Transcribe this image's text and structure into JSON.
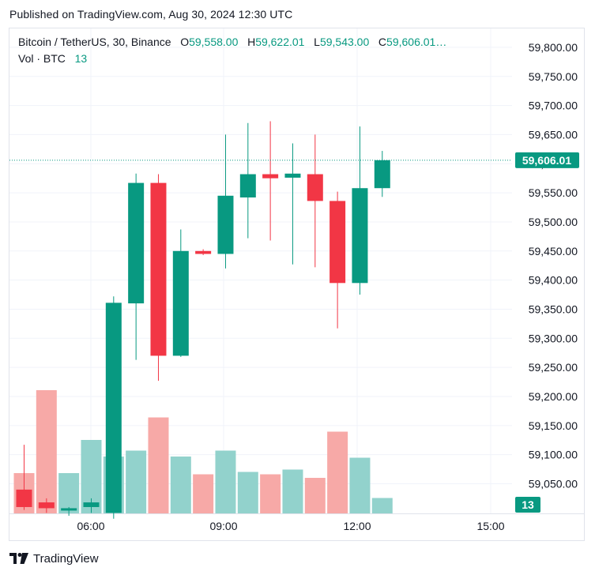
{
  "header": {
    "published": "Published on TradingView.com, Aug 30, 2024 12:30 UTC"
  },
  "legend": {
    "symbol": "Bitcoin / TetherUS, 30, Binance",
    "o_label": "O",
    "o_value": "59,558.00",
    "h_label": "H",
    "h_value": "59,622.01",
    "l_label": "L",
    "l_value": "59,543.00",
    "c_label": "C",
    "c_value": "59,606.01…",
    "vol_label": "Vol · BTC",
    "vol_value": "13"
  },
  "footer": {
    "brand": "TradingView",
    "logo_icon": "tradingview-logo-icon"
  },
  "colors": {
    "up": "#089981",
    "down": "#f23645",
    "up_vol": "#92d2cc",
    "down_vol": "#f7a9a7",
    "grid": "#f0f3fa"
  },
  "chart_data": {
    "type": "candlestick",
    "title": "Bitcoin / TetherUS, 30, Binance",
    "ylim": [
      59000,
      59825
    ],
    "y_ticks": [
      59050,
      59100,
      59150,
      59200,
      59250,
      59300,
      59350,
      59400,
      59450,
      59500,
      59550,
      59600,
      59650,
      59700,
      59750,
      59800
    ],
    "y_tick_labels": [
      "59,050.00",
      "59,100.00",
      "59,150.00",
      "59,200.00",
      "59,250.00",
      "59,300.00",
      "59,350.00",
      "59,400.00",
      "59,450.00",
      "59,500.00",
      "59,550.00",
      "59,600.00",
      "59,650.00",
      "59,700.00",
      "59,750.00",
      "59,800.00"
    ],
    "x_ticks": [
      "06:00",
      "09:00",
      "12:00",
      "15:00"
    ],
    "last_price": 59606.01,
    "last_price_label": "59,606.01",
    "last_volume_label": "13",
    "candles": [
      {
        "time": "04:30",
        "open": 59040,
        "high": 59117,
        "low": 59005,
        "close": 59010,
        "volume": 34
      },
      {
        "time": "05:00",
        "open": 59018,
        "high": 59025,
        "low": 59000,
        "close": 59008,
        "volume": 104
      },
      {
        "time": "05:30",
        "open": 59005,
        "high": 59010,
        "low": 58995,
        "close": 59008,
        "volume": 34
      },
      {
        "time": "06:00",
        "open": 59010,
        "high": 59025,
        "low": 59000,
        "close": 59018,
        "volume": 62
      },
      {
        "time": "06:30",
        "open": 59000,
        "high": 59372,
        "low": 58990,
        "close": 59361,
        "volume": 48
      },
      {
        "time": "07:00",
        "open": 59360,
        "high": 59583,
        "low": 59263,
        "close": 59567,
        "volume": 53
      },
      {
        "time": "07:30",
        "open": 59567,
        "high": 59582,
        "low": 59227,
        "close": 59270,
        "volume": 81
      },
      {
        "time": "08:00",
        "open": 59270,
        "high": 59487,
        "low": 59268,
        "close": 59450,
        "volume": 48
      },
      {
        "time": "08:30",
        "open": 59450,
        "high": 59453,
        "low": 59443,
        "close": 59445,
        "volume": 33
      },
      {
        "time": "09:00",
        "open": 59445,
        "high": 59650,
        "low": 59420,
        "close": 59545,
        "volume": 53
      },
      {
        "time": "09:30",
        "open": 59542,
        "high": 59670,
        "low": 59472,
        "close": 59582,
        "volume": 35
      },
      {
        "time": "10:00",
        "open": 59582,
        "high": 59673,
        "low": 59468,
        "close": 59575,
        "volume": 33
      },
      {
        "time": "10:30",
        "open": 59576,
        "high": 59635,
        "low": 59427,
        "close": 59583,
        "volume": 37
      },
      {
        "time": "11:00",
        "open": 59582,
        "high": 59650,
        "low": 59422,
        "close": 59536,
        "volume": 30
      },
      {
        "time": "11:30",
        "open": 59536,
        "high": 59552,
        "low": 59317,
        "close": 59395,
        "volume": 69
      },
      {
        "time": "12:00",
        "open": 59395,
        "high": 59664,
        "low": 59375,
        "close": 59558,
        "volume": 47
      },
      {
        "time": "12:30",
        "open": 59558,
        "high": 59622.01,
        "low": 59543,
        "close": 59606.01,
        "volume": 13
      }
    ]
  }
}
